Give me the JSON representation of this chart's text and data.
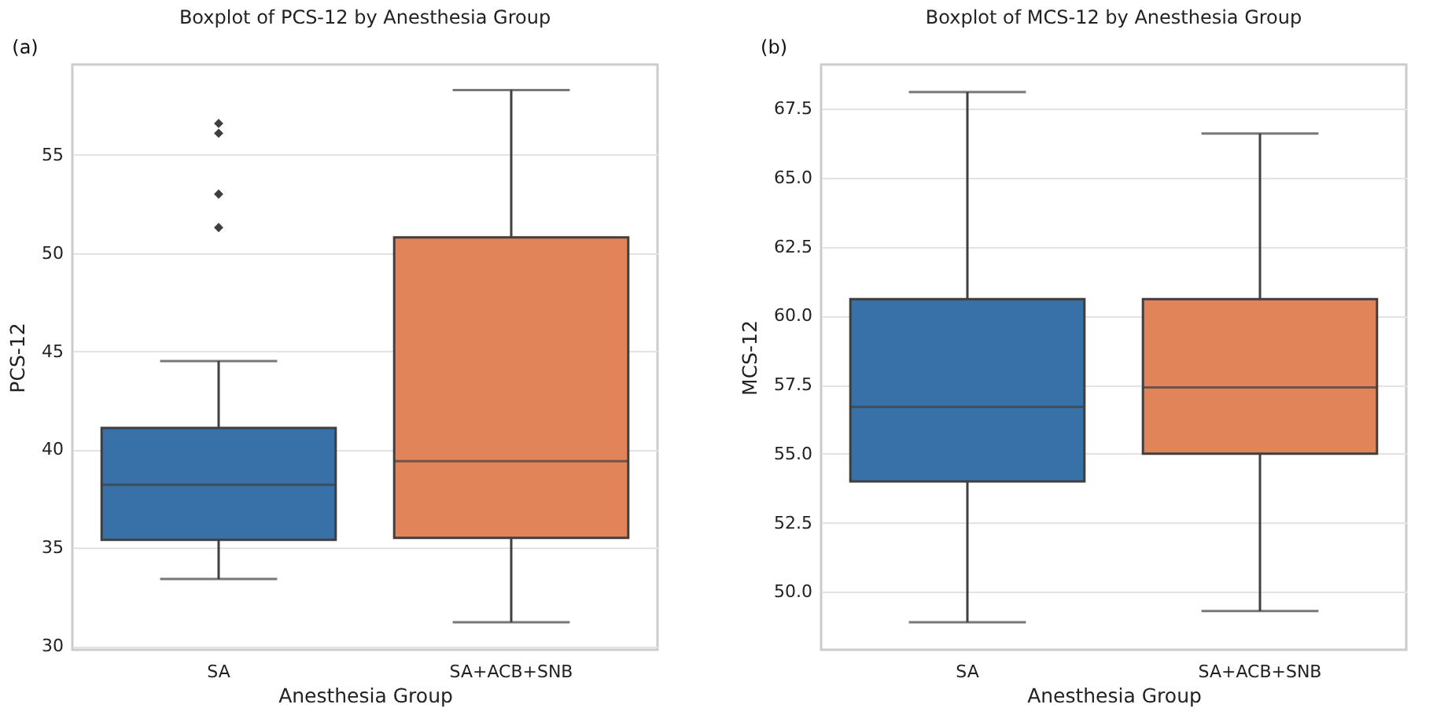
{
  "chart_data": [
    {
      "type": "box",
      "title": "Boxplot of PCS-12 by Anesthesia Group",
      "xlabel": "Anesthesia Group",
      "ylabel": "PCS-12",
      "annotations": [
        "(a)"
      ],
      "categories": [
        "SA",
        "SA+ACB+SNB"
      ],
      "colors": [
        "#3870a8",
        "#e2845a"
      ],
      "boxes": [
        {
          "low": 33.4,
          "q1": 35.4,
          "median": 38.2,
          "q3": 41.1,
          "high": 44.5,
          "outliers": [
            56.6,
            56.1,
            53.0,
            51.3
          ]
        },
        {
          "low": 31.2,
          "q1": 35.5,
          "median": 39.4,
          "q3": 50.8,
          "high": 58.3
        }
      ],
      "ylim": [
        29.8,
        59.6
      ],
      "yticks": [
        30,
        35,
        40,
        45,
        50,
        55
      ],
      "grid": "y",
      "marker": "diamond"
    },
    {
      "type": "box",
      "title": "Boxplot of MCS-12 by Anesthesia Group",
      "xlabel": "Anesthesia Group",
      "ylabel": "MCS-12",
      "annotations": [
        "(b)"
      ],
      "categories": [
        "SA",
        "SA+ACB+SNB"
      ],
      "colors": [
        "#3870a8",
        "#e2845a"
      ],
      "boxes": [
        {
          "low": 48.9,
          "q1": 54.0,
          "median": 56.7,
          "q3": 60.6,
          "high": 68.1
        },
        {
          "low": 49.3,
          "q1": 55.0,
          "median": 57.4,
          "q3": 60.6,
          "high": 66.6
        }
      ],
      "ylim": [
        47.9,
        69.1
      ],
      "yticks": [
        {
          "value": 50,
          "label": "50.0"
        },
        {
          "value": 52.5,
          "label": "52.5"
        },
        {
          "value": 55,
          "label": "55.0"
        },
        {
          "value": 57.5,
          "label": "57.5"
        },
        {
          "value": 60,
          "label": "60.0"
        },
        {
          "value": 62.5,
          "label": "62.5"
        },
        {
          "value": 65,
          "label": "65.0"
        },
        {
          "value": 67.5,
          "label": "67.5"
        }
      ],
      "grid": "y"
    }
  ]
}
